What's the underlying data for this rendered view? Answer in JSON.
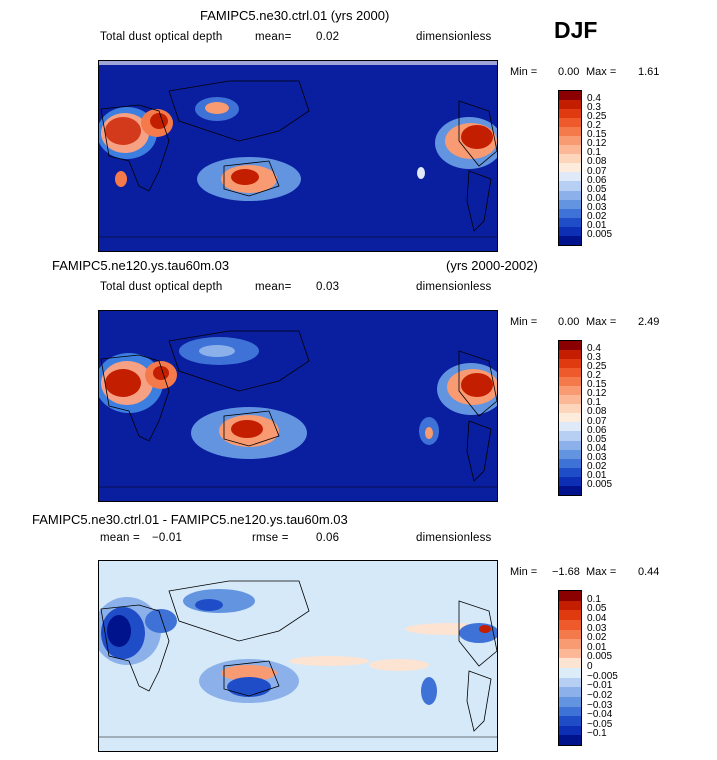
{
  "season": "DJF",
  "panels": [
    {
      "title": "FAMIPC5.ne30.ctrl.01 (yrs 2000)",
      "subtitle_left": "Total dust optical depth",
      "mean_label": "mean=",
      "mean_value": "0.02",
      "units": "dimensionless",
      "min_label": "Min =",
      "min_value": "0.00",
      "max_label": "Max =",
      "max_value": "1.61",
      "colorbar_labels": [
        "0.4",
        "0.3",
        "0.25",
        "0.2",
        "0.15",
        "0.12",
        "0.1",
        "0.08",
        "0.07",
        "0.06",
        "0.05",
        "0.04",
        "0.03",
        "0.02",
        "0.01",
        "0.005"
      ],
      "colorbar_colors": [
        "#8b0000",
        "#c41e00",
        "#e03a10",
        "#ee5a2c",
        "#f47a4c",
        "#f89a72",
        "#fbb796",
        "#fcd5bb",
        "#fdebdc",
        "#dfe9f8",
        "#b6cff3",
        "#8cb1ea",
        "#6394e0",
        "#3f72d6",
        "#1f4dc8",
        "#0d2fb5",
        "#00128c"
      ]
    },
    {
      "title": "FAMIPC5.ne120.ys.tau60m.03",
      "title_right": "(yrs 2000-2002)",
      "subtitle_left": "Total dust optical depth",
      "mean_label": "mean=",
      "mean_value": "0.03",
      "units": "dimensionless",
      "min_label": "Min =",
      "min_value": "0.00",
      "max_label": "Max =",
      "max_value": "2.49",
      "colorbar_labels": [
        "0.4",
        "0.3",
        "0.25",
        "0.2",
        "0.15",
        "0.12",
        "0.1",
        "0.08",
        "0.07",
        "0.06",
        "0.05",
        "0.04",
        "0.03",
        "0.02",
        "0.01",
        "0.005"
      ],
      "colorbar_colors": [
        "#8b0000",
        "#c41e00",
        "#e03a10",
        "#ee5a2c",
        "#f47a4c",
        "#f89a72",
        "#fbb796",
        "#fcd5bb",
        "#fdebdc",
        "#dfe9f8",
        "#b6cff3",
        "#8cb1ea",
        "#6394e0",
        "#3f72d6",
        "#1f4dc8",
        "#0d2fb5",
        "#00128c"
      ]
    },
    {
      "title": "FAMIPC5.ne30.ctrl.01 - FAMIPC5.ne120.ys.tau60m.03",
      "mean_label": "mean =",
      "mean_value": "−0.01",
      "rmse_label": "rmse =",
      "rmse_value": "0.06",
      "units": "dimensionless",
      "min_label": "Min =",
      "min_value": "−1.68",
      "max_label": "Max =",
      "max_value": "0.44",
      "colorbar_labels": [
        "0.1",
        "0.05",
        "0.04",
        "0.03",
        "0.02",
        "0.01",
        "0.005",
        "0",
        "−0.005",
        "−0.01",
        "−0.02",
        "−0.03",
        "−0.04",
        "−0.05",
        "−0.1"
      ],
      "colorbar_colors": [
        "#8b0000",
        "#c41e00",
        "#e03a10",
        "#ee5a2c",
        "#f47a4c",
        "#f89a72",
        "#fbb796",
        "#fde3d2",
        "#dcecf8",
        "#b6cff3",
        "#8cb1ea",
        "#6394e0",
        "#3f72d6",
        "#1f4dc8",
        "#0d2fb5",
        "#00128c"
      ]
    }
  ],
  "colors": {
    "dust_background": "#0a1fa0",
    "diff_background": "#d6e9f8"
  }
}
